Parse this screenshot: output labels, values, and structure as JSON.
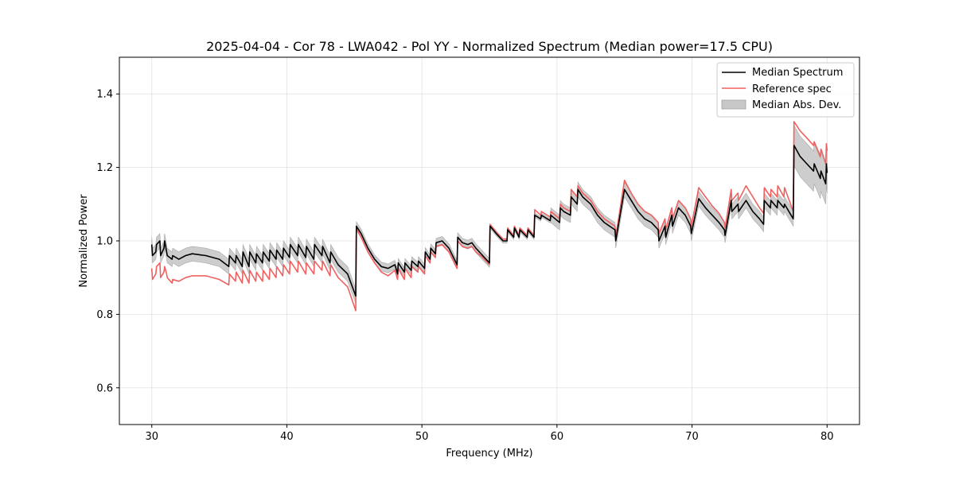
{
  "chart_data": {
    "type": "line",
    "title": "2025-04-04 - Cor 78 - LWA042 - Pol YY - Normalized Spectrum (Median power=17.5 CPU)",
    "xlabel": "Frequency (MHz)",
    "ylabel": "Normalized Power",
    "xlim": [
      27.6,
      82.4
    ],
    "ylim": [
      0.5,
      1.5
    ],
    "xticks": [
      30,
      40,
      50,
      60,
      70,
      80
    ],
    "yticks": [
      0.6,
      0.8,
      1.0,
      1.2,
      1.4
    ],
    "grid": true,
    "legend_position": "top-right",
    "colors": {
      "median": "#000000",
      "reference": "#f06060",
      "mad": "#c8c8c8"
    },
    "legend": [
      {
        "label": "Median Spectrum",
        "kind": "line",
        "color": "#000000"
      },
      {
        "label": "Reference spec",
        "kind": "line",
        "color": "#f06060"
      },
      {
        "label": "Median Abs. Dev.",
        "kind": "patch",
        "color": "#c8c8c8"
      }
    ],
    "series": [
      {
        "name": "Median Spectrum",
        "x": [
          30.0,
          30.05,
          30.3,
          30.35,
          30.6,
          30.65,
          30.9,
          30.95,
          31.1,
          31.15,
          31.5,
          31.55,
          32.0,
          32.5,
          33.0,
          34.0,
          35.0,
          35.7,
          35.75,
          36.2,
          36.25,
          36.7,
          36.75,
          37.2,
          37.25,
          37.7,
          37.75,
          38.2,
          38.25,
          38.7,
          38.75,
          39.2,
          39.25,
          39.7,
          39.75,
          40.2,
          40.25,
          40.8,
          40.85,
          41.4,
          41.45,
          42.0,
          42.05,
          42.6,
          42.65,
          43.2,
          43.25,
          43.8,
          44.5,
          45.1,
          45.15,
          45.5,
          46.0,
          46.5,
          47.0,
          47.5,
          48.0,
          48.2,
          48.25,
          48.7,
          48.75,
          49.2,
          49.25,
          49.7,
          49.75,
          50.2,
          50.25,
          50.6,
          50.65,
          51.0,
          51.05,
          51.5,
          52.0,
          52.6,
          52.65,
          53.0,
          53.4,
          53.7,
          54.0,
          54.5,
          55.0,
          55.05,
          55.5,
          56.0,
          56.3,
          56.35,
          56.8,
          56.85,
          57.2,
          57.25,
          57.8,
          57.85,
          58.3,
          58.35,
          58.8,
          58.85,
          59.5,
          59.55,
          60.2,
          60.25,
          60.5,
          61.0,
          61.05,
          61.5,
          61.55,
          61.9,
          62.5,
          63.0,
          63.5,
          64.3,
          64.35,
          65.0,
          65.5,
          66.0,
          66.5,
          67.0,
          67.5,
          67.55,
          68.0,
          68.05,
          68.5,
          68.55,
          69.0,
          69.5,
          69.9,
          69.95,
          70.5,
          71.0,
          71.5,
          72.0,
          72.4,
          72.45,
          72.9,
          72.95,
          73.4,
          73.45,
          74.0,
          74.5,
          75.0,
          75.3,
          75.35,
          75.8,
          75.85,
          76.3,
          76.35,
          76.8,
          76.85,
          77.5,
          77.55,
          78.0,
          78.5,
          79.0,
          79.05,
          79.5,
          79.55,
          79.9,
          79.95,
          80.0
        ],
        "y": [
          0.99,
          0.96,
          0.97,
          0.99,
          1.0,
          0.96,
          0.98,
          1.0,
          0.97,
          0.96,
          0.95,
          0.96,
          0.95,
          0.96,
          0.965,
          0.96,
          0.95,
          0.93,
          0.96,
          0.94,
          0.96,
          0.93,
          0.97,
          0.93,
          0.97,
          0.94,
          0.965,
          0.94,
          0.97,
          0.945,
          0.975,
          0.95,
          0.975,
          0.95,
          0.98,
          0.955,
          0.99,
          0.96,
          0.99,
          0.955,
          0.985,
          0.95,
          0.99,
          0.96,
          0.985,
          0.94,
          0.97,
          0.935,
          0.91,
          0.85,
          1.04,
          1.02,
          0.98,
          0.95,
          0.93,
          0.925,
          0.935,
          0.91,
          0.94,
          0.915,
          0.94,
          0.92,
          0.945,
          0.93,
          0.945,
          0.925,
          0.97,
          0.95,
          0.98,
          0.965,
          0.995,
          1.0,
          0.98,
          0.935,
          1.01,
          0.995,
          0.99,
          0.995,
          0.98,
          0.96,
          0.94,
          1.04,
          1.02,
          1.0,
          1.0,
          1.03,
          1.01,
          1.035,
          1.01,
          1.03,
          1.01,
          1.03,
          1.01,
          1.07,
          1.06,
          1.07,
          1.055,
          1.07,
          1.05,
          1.09,
          1.08,
          1.07,
          1.12,
          1.1,
          1.14,
          1.12,
          1.1,
          1.07,
          1.05,
          1.03,
          1.0,
          1.14,
          1.11,
          1.08,
          1.06,
          1.05,
          1.03,
          1.0,
          1.04,
          1.01,
          1.07,
          1.04,
          1.09,
          1.07,
          1.04,
          1.02,
          1.115,
          1.09,
          1.07,
          1.05,
          1.03,
          1.015,
          1.11,
          1.08,
          1.1,
          1.08,
          1.11,
          1.08,
          1.06,
          1.045,
          1.11,
          1.09,
          1.11,
          1.09,
          1.11,
          1.09,
          1.1,
          1.06,
          1.26,
          1.23,
          1.21,
          1.19,
          1.21,
          1.17,
          1.19,
          1.155,
          1.21,
          1.185
        ]
      },
      {
        "name": "Reference spec",
        "x": [
          30.0,
          30.05,
          30.3,
          30.35,
          30.6,
          30.65,
          30.9,
          30.95,
          31.1,
          31.15,
          31.5,
          31.55,
          32.0,
          32.5,
          33.0,
          34.0,
          35.0,
          35.7,
          35.75,
          36.2,
          36.25,
          36.7,
          36.75,
          37.2,
          37.25,
          37.7,
          37.75,
          38.2,
          38.25,
          38.7,
          38.75,
          39.2,
          39.25,
          39.7,
          39.75,
          40.2,
          40.25,
          40.8,
          40.85,
          41.4,
          41.45,
          42.0,
          42.05,
          42.6,
          42.65,
          43.2,
          43.25,
          43.8,
          44.5,
          45.1,
          45.15,
          45.5,
          46.0,
          46.5,
          47.0,
          47.5,
          48.0,
          48.2,
          48.25,
          48.7,
          48.75,
          49.2,
          49.25,
          49.7,
          49.75,
          50.2,
          50.25,
          50.6,
          50.65,
          51.0,
          51.05,
          51.5,
          52.0,
          52.6,
          52.65,
          53.0,
          53.4,
          53.7,
          54.0,
          54.5,
          55.0,
          55.05,
          55.5,
          56.0,
          56.3,
          56.35,
          56.8,
          56.85,
          57.2,
          57.25,
          57.8,
          57.85,
          58.3,
          58.35,
          58.8,
          58.85,
          59.5,
          59.55,
          60.2,
          60.25,
          60.5,
          61.0,
          61.05,
          61.5,
          61.55,
          61.9,
          62.5,
          63.0,
          63.5,
          64.3,
          64.35,
          65.0,
          65.5,
          66.0,
          66.5,
          67.0,
          67.5,
          67.55,
          68.0,
          68.05,
          68.5,
          68.55,
          69.0,
          69.5,
          69.9,
          69.95,
          70.5,
          71.0,
          71.5,
          72.0,
          72.4,
          72.45,
          72.9,
          72.95,
          73.4,
          73.45,
          74.0,
          74.5,
          75.0,
          75.3,
          75.35,
          75.8,
          75.85,
          76.3,
          76.35,
          76.8,
          76.85,
          77.5,
          77.55,
          78.0,
          78.5,
          79.0,
          79.05,
          79.5,
          79.55,
          79.9,
          79.95,
          80.0
        ],
        "y": [
          0.925,
          0.895,
          0.91,
          0.93,
          0.94,
          0.9,
          0.915,
          0.93,
          0.91,
          0.9,
          0.885,
          0.895,
          0.89,
          0.9,
          0.905,
          0.905,
          0.895,
          0.88,
          0.91,
          0.89,
          0.915,
          0.885,
          0.92,
          0.885,
          0.92,
          0.89,
          0.915,
          0.89,
          0.92,
          0.895,
          0.925,
          0.9,
          0.93,
          0.905,
          0.935,
          0.91,
          0.945,
          0.915,
          0.945,
          0.91,
          0.94,
          0.91,
          0.945,
          0.92,
          0.945,
          0.905,
          0.935,
          0.9,
          0.875,
          0.81,
          1.035,
          1.01,
          0.97,
          0.94,
          0.915,
          0.905,
          0.92,
          0.895,
          0.925,
          0.895,
          0.925,
          0.9,
          0.93,
          0.915,
          0.93,
          0.91,
          0.96,
          0.94,
          0.97,
          0.955,
          0.985,
          0.99,
          0.97,
          0.925,
          1.0,
          0.985,
          0.98,
          0.985,
          0.97,
          0.955,
          0.935,
          1.045,
          1.025,
          1.005,
          1.005,
          1.035,
          1.015,
          1.04,
          1.015,
          1.035,
          1.015,
          1.035,
          1.015,
          1.085,
          1.07,
          1.08,
          1.065,
          1.08,
          1.06,
          1.1,
          1.09,
          1.08,
          1.14,
          1.12,
          1.15,
          1.13,
          1.11,
          1.08,
          1.06,
          1.04,
          1.01,
          1.165,
          1.13,
          1.1,
          1.08,
          1.07,
          1.05,
          1.02,
          1.06,
          1.03,
          1.09,
          1.06,
          1.11,
          1.09,
          1.06,
          1.04,
          1.145,
          1.12,
          1.095,
          1.075,
          1.05,
          1.035,
          1.14,
          1.11,
          1.13,
          1.11,
          1.15,
          1.12,
          1.09,
          1.075,
          1.145,
          1.12,
          1.14,
          1.12,
          1.15,
          1.12,
          1.145,
          1.08,
          1.325,
          1.3,
          1.28,
          1.26,
          1.27,
          1.23,
          1.25,
          1.21,
          1.265,
          1.245
        ]
      }
    ],
    "mad_band_halfwidth": [
      {
        "x_from": 30.0,
        "x_to": 45.1,
        "value": 0.02
      },
      {
        "x_from": 45.15,
        "x_to": 55.0,
        "value": 0.012
      },
      {
        "x_from": 55.05,
        "x_to": 59.5,
        "value": 0.006
      },
      {
        "x_from": 59.55,
        "x_to": 77.5,
        "value": 0.02
      },
      {
        "x_from": 77.55,
        "x_to": 80.0,
        "value": 0.055
      }
    ]
  }
}
